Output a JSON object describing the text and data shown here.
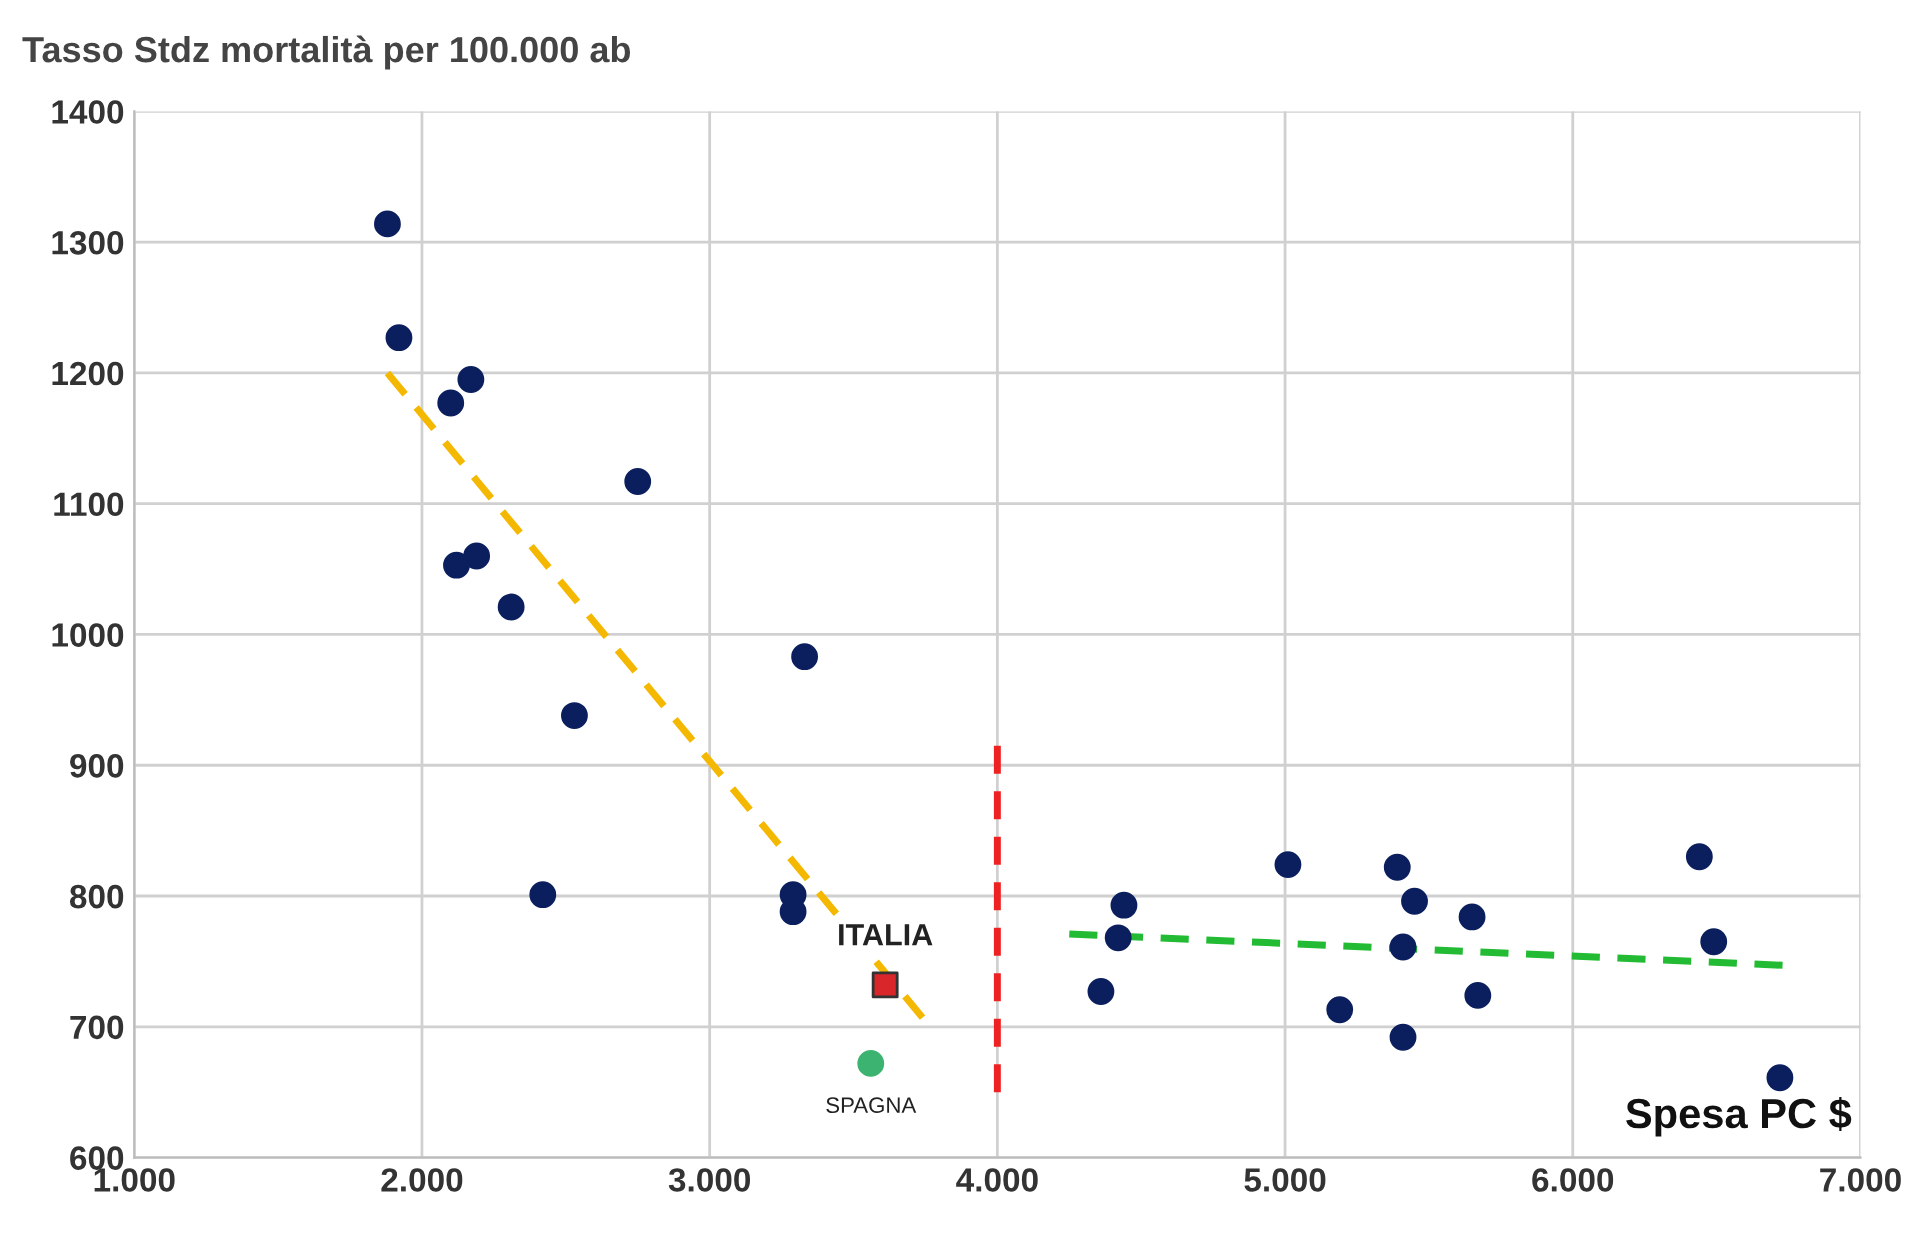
{
  "chart_data": {
    "type": "scatter",
    "ylabel": "Tasso Stdz mortalità per 100.000 ab",
    "xlabel": "Spesa PC $",
    "xlim": [
      1000,
      7000
    ],
    "ylim": [
      600,
      1400
    ],
    "xticks": [
      {
        "value": 1000,
        "label": "1.000"
      },
      {
        "value": 2000,
        "label": "2.000"
      },
      {
        "value": 3000,
        "label": "3.000"
      },
      {
        "value": 4000,
        "label": "4.000"
      },
      {
        "value": 5000,
        "label": "5.000"
      },
      {
        "value": 6000,
        "label": "6.000"
      },
      {
        "value": 7000,
        "label": "7.000"
      }
    ],
    "yticks": [
      600,
      700,
      800,
      900,
      1000,
      1100,
      1200,
      1300,
      1400
    ],
    "grid": true,
    "series": [
      {
        "type": "line",
        "color": "#f5b800",
        "line_style": "dashed",
        "marker": "none",
        "x": [
          1880,
          3740
        ],
        "values": [
          1200,
          707
        ]
      },
      {
        "type": "line",
        "color": "#22bb33",
        "line_style": "dashed",
        "marker": "none",
        "x": [
          4250,
          6730
        ],
        "values": [
          771,
          747
        ]
      },
      {
        "type": "line",
        "color": "#ee2222",
        "line_style": "dashed",
        "marker": "none",
        "x": [
          4000,
          4000
        ],
        "values": [
          650,
          915
        ]
      },
      {
        "color": "#0b1f5e",
        "marker": "circle",
        "x": [
          1880,
          1920,
          2170,
          2100,
          2190,
          2120,
          2310,
          2750,
          2530,
          2420,
          3330,
          3290,
          3290,
          4360,
          4420,
          4440,
          5010,
          5190,
          5390,
          5410,
          5450,
          5410,
          5650,
          5670,
          6440,
          6490,
          6720
        ],
        "values": [
          1314,
          1227,
          1195,
          1177,
          1060,
          1053,
          1021,
          1117,
          938,
          801,
          983,
          801,
          788,
          727,
          768,
          793,
          824,
          713,
          822,
          761,
          796,
          692,
          784,
          724,
          830,
          765,
          661
        ]
      },
      {
        "color": "#d9262b",
        "marker": "square",
        "x": [
          3610
        ],
        "values": [
          732
        ]
      },
      {
        "color": "#3cb371",
        "marker": "circle",
        "x": [
          3560
        ],
        "values": [
          672
        ]
      }
    ],
    "annotations": [
      {
        "text": "ITALIA",
        "x": 3610,
        "y": 732
      },
      {
        "text": "SPAGNA",
        "x": 3560,
        "y": 672
      }
    ]
  }
}
